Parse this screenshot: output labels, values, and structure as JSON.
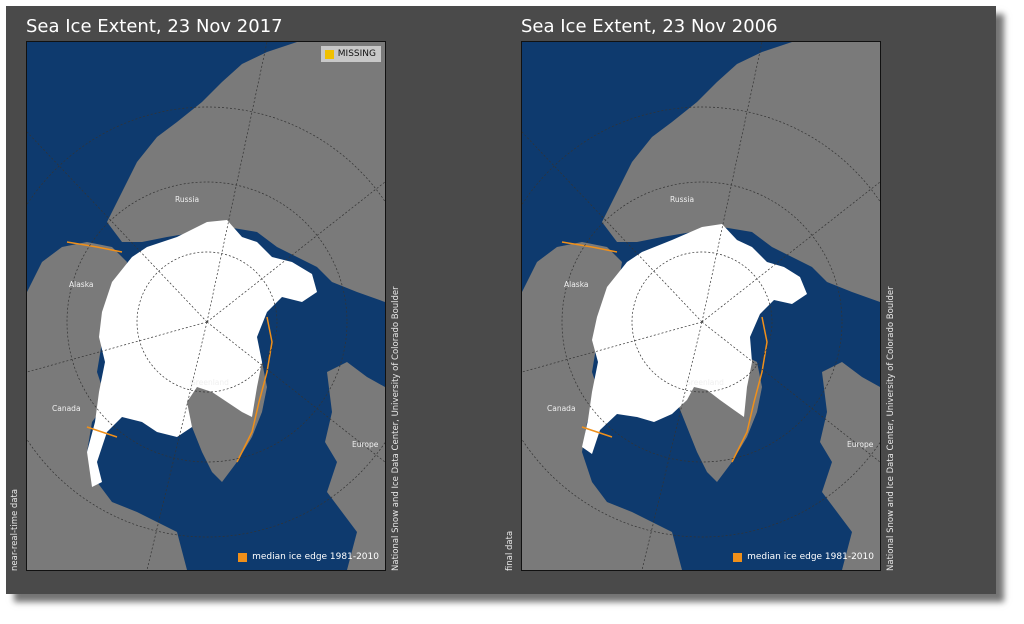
{
  "panels": [
    {
      "title": "Sea Ice Extent, 23 Nov 2017",
      "data_type": "near-real-time data",
      "credit": "National Snow and Ice Data Center, University of Colorado Boulder",
      "missing_label": "MISSING",
      "median_label": "median ice edge 1981-2010",
      "places": {
        "russia": "Russia",
        "alaska": "Alaska",
        "canada": "Canada",
        "greenland": "Greenland",
        "europe": "Europe"
      }
    },
    {
      "title": "Sea Ice Extent, 23 Nov 2006",
      "data_type": "final data",
      "credit": "National Snow and Ice Data Center, University of Colorado Boulder",
      "median_label": "median ice edge 1981-2010",
      "places": {
        "russia": "Russia",
        "alaska": "Alaska",
        "canada": "Canada",
        "greenland": "Greenland",
        "europe": "Europe"
      }
    }
  ],
  "colors": {
    "ocean": "#0e3a6e",
    "land": "#7a7a7a",
    "ice": "#ffffff",
    "missing": "#f0c000",
    "median_edge": "#f0901a",
    "frame": "#4a4a4a"
  }
}
